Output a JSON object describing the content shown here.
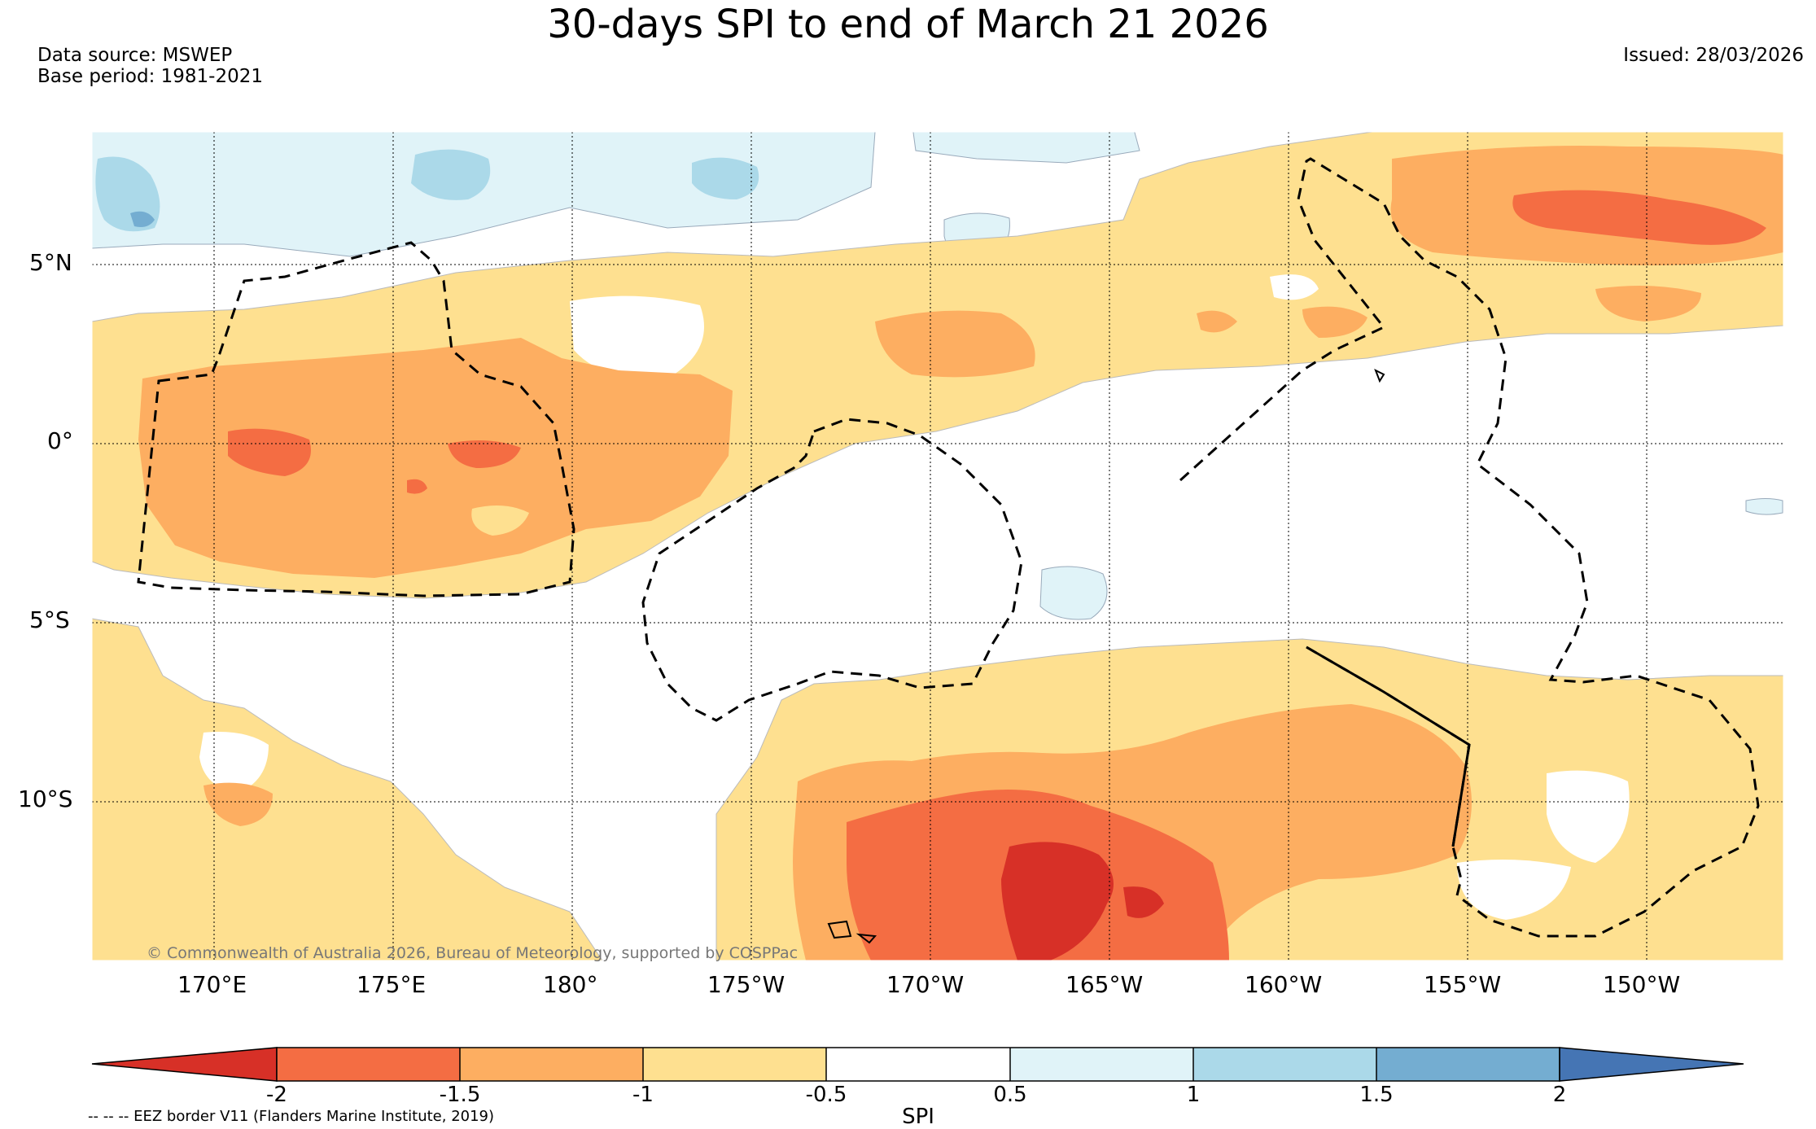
{
  "title": "30-days SPI to end of March 21 2026",
  "data_source": "Data source: MSWEP",
  "base_period": "Base period: 1981-2021",
  "issued": "Issued: 28/03/2026",
  "copyright": "© Commonwealth of Australia 2026, Bureau of Meteorology, supported by COSPPac",
  "eez_note": "-- -- -- EEZ border V11 (Flanders Marine Institute, 2019)",
  "map": {
    "lat_ticks": [
      "5°N",
      "0°",
      "5°S",
      "10°S"
    ],
    "lon_ticks": [
      "170°E",
      "175°E",
      "180°",
      "175°W",
      "170°W",
      "165°W",
      "160°W",
      "155°W",
      "150°W"
    ]
  },
  "colorbar": {
    "title": "SPI",
    "tick_labels": [
      "-2",
      "-1.5",
      "-1",
      "-0.5",
      "0.5",
      "1",
      "1.5",
      "2"
    ],
    "colors": {
      "below_-2": "#d73027",
      "-2_-1.5": "#f46d43",
      "-1.5_-1": "#fdae61",
      "-1_-0.5": "#fee090",
      "-0.5_0.5": "#ffffff",
      "0.5_1": "#e0f3f8",
      "1_1.5": "#abd9e9",
      "1.5_2": "#74add1",
      "above_2": "#4575b4"
    }
  }
}
